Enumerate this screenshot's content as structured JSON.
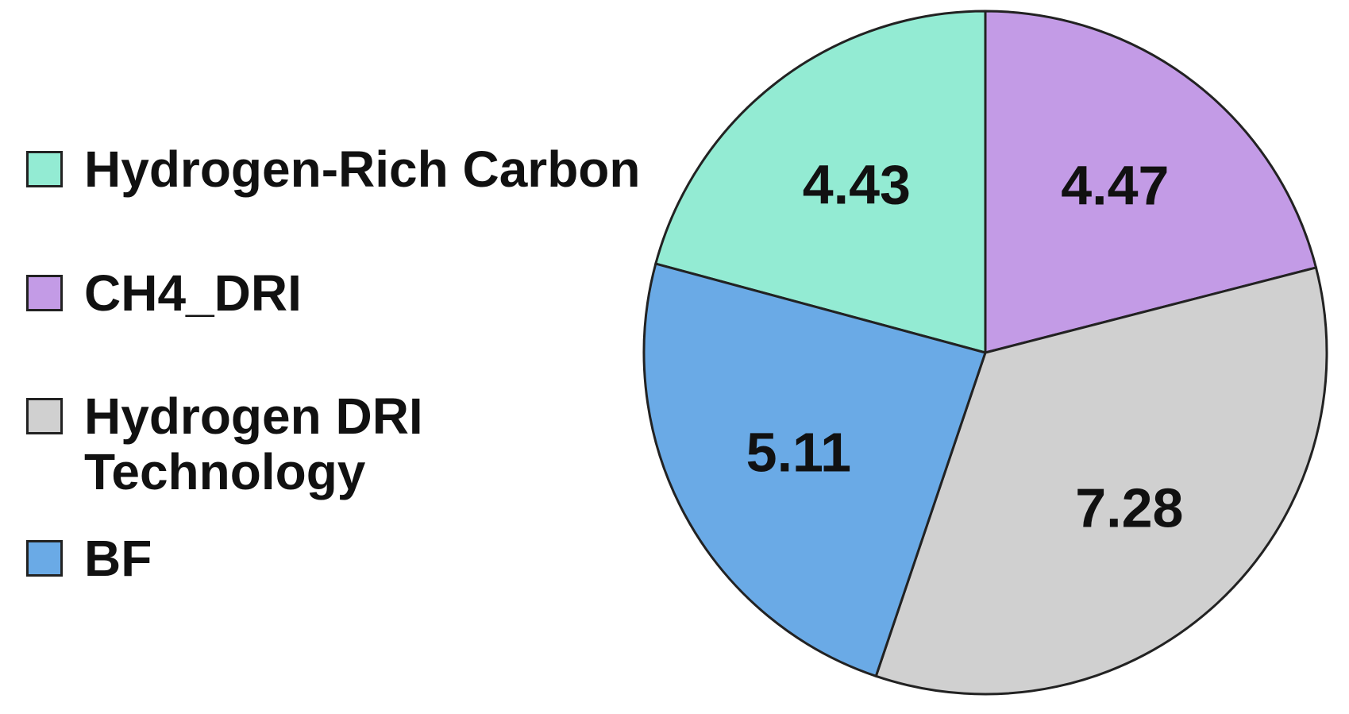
{
  "chart_data": {
    "type": "pie",
    "categories": [
      "Hydrogen-Rich Carbon",
      "CH4_DRI",
      "Hydrogen DRI Technology",
      "BF"
    ],
    "values": [
      4.43,
      4.47,
      7.28,
      5.11
    ],
    "colors": [
      "#93ebd3",
      "#c39be6",
      "#d0d0d0",
      "#6aaae6"
    ]
  }
}
